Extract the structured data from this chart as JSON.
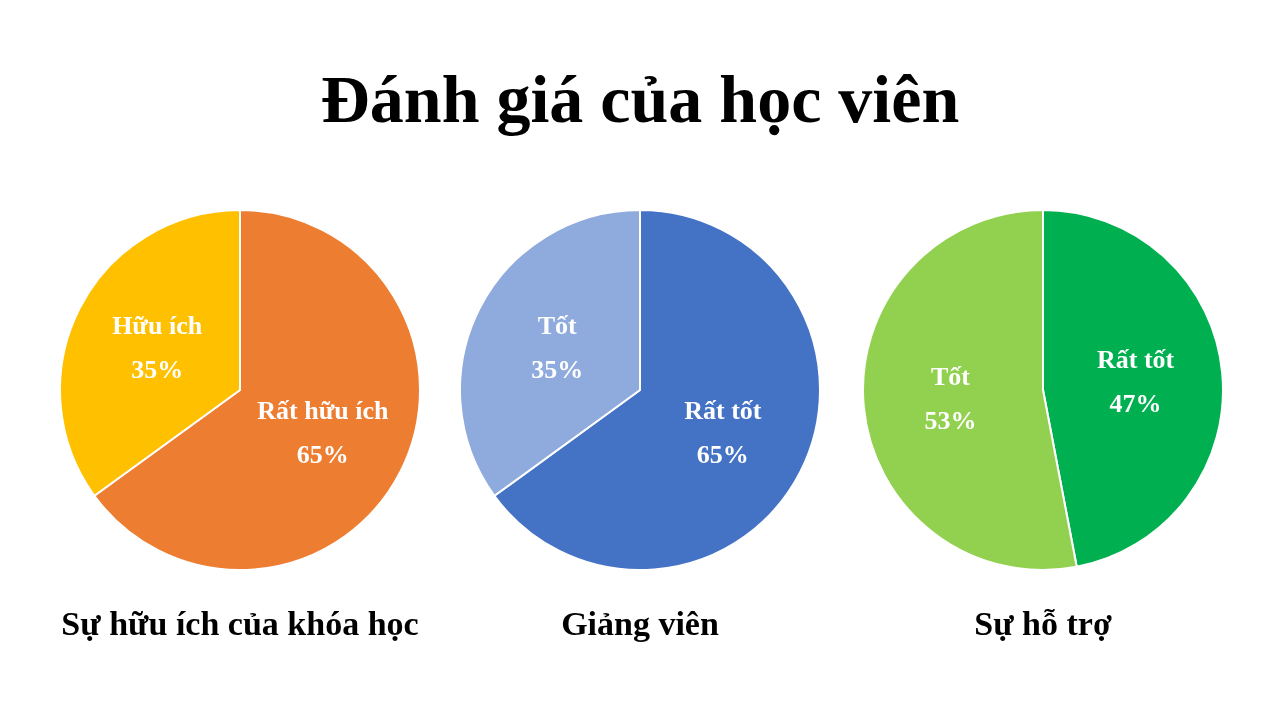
{
  "chart_data": [
    {
      "type": "pie",
      "title": "Đánh giá của học viên",
      "subtitle": "Sự hữu ích của khóa học",
      "categories": [
        "Rất hữu ích",
        "Hữu ích"
      ],
      "values": [
        65,
        35
      ],
      "colors": [
        "#ed7d31",
        "#ffc000"
      ],
      "value_labels": [
        "65%",
        "35%"
      ]
    },
    {
      "type": "pie",
      "subtitle": "Giảng viên",
      "categories": [
        "Rất tốt",
        "Tốt"
      ],
      "values": [
        65,
        35
      ],
      "colors": [
        "#4472c4",
        "#8faadc"
      ],
      "value_labels": [
        "65%",
        "35%"
      ]
    },
    {
      "type": "pie",
      "subtitle": "Sự hỗ trợ",
      "categories": [
        "Rất tốt",
        "Tốt"
      ],
      "values": [
        47,
        53
      ],
      "colors": [
        "#00b050",
        "#92d050"
      ],
      "value_labels": [
        "47%",
        "53%"
      ]
    }
  ]
}
